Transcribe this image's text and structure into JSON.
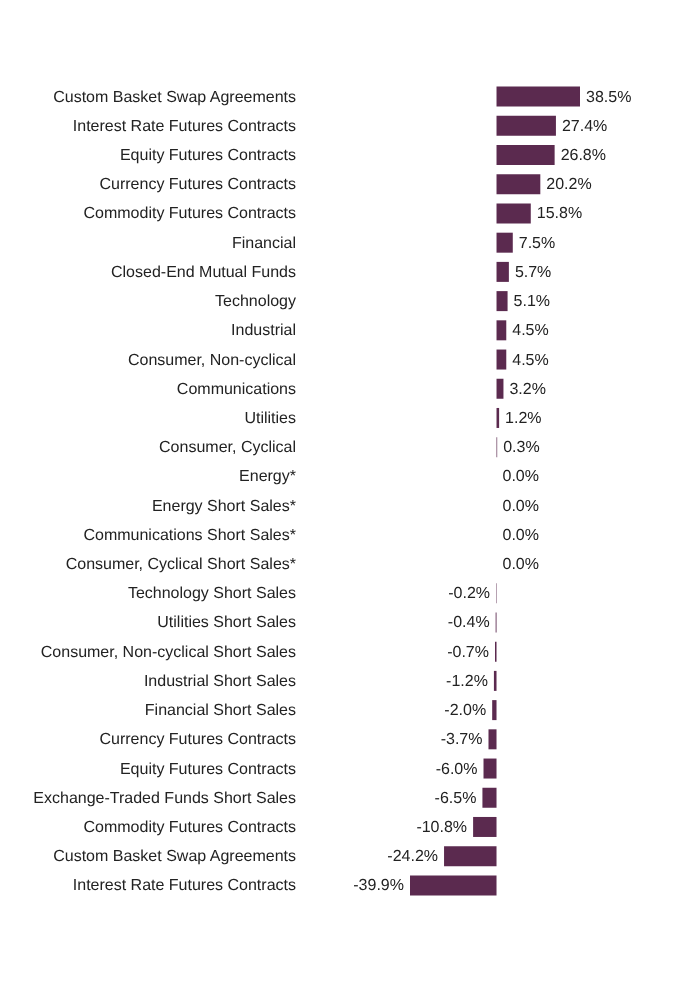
{
  "chart_data": {
    "type": "bar",
    "orientation": "horizontal",
    "color": "#5b2a4f",
    "categories": [
      "Custom Basket Swap Agreements",
      "Interest Rate Futures Contracts",
      "Equity Futures Contracts",
      "Currency Futures Contracts",
      "Commodity Futures Contracts",
      "Financial",
      "Closed-End Mutual Funds",
      "Technology",
      "Industrial",
      "Consumer, Non-cyclical",
      "Communications",
      "Utilities",
      "Consumer, Cyclical",
      "Energy*",
      "Energy Short Sales*",
      "Communications Short Sales*",
      "Consumer, Cyclical Short Sales*",
      "Technology Short Sales",
      "Utilities Short Sales",
      "Consumer, Non-cyclical Short Sales",
      "Industrial Short Sales",
      "Financial Short Sales",
      "Currency Futures Contracts",
      "Equity Futures Contracts",
      "Exchange-Traded Funds Short Sales",
      "Commodity Futures Contracts",
      "Custom Basket Swap Agreements",
      "Interest Rate Futures Contracts"
    ],
    "values": [
      38.5,
      27.4,
      26.8,
      20.2,
      15.8,
      7.5,
      5.7,
      5.1,
      4.5,
      4.5,
      3.2,
      1.2,
      0.3,
      0.0,
      0.0,
      0.0,
      0.0,
      -0.2,
      -0.4,
      -0.7,
      -1.2,
      -2.0,
      -3.7,
      -6.0,
      -6.5,
      -10.8,
      -24.2,
      -39.9
    ],
    "value_labels": [
      "38.5%",
      "27.4%",
      "26.8%",
      "20.2%",
      "15.8%",
      "7.5%",
      "5.7%",
      "5.1%",
      "4.5%",
      "4.5%",
      "3.2%",
      "1.2%",
      "0.3%",
      "0.0%",
      "0.0%",
      "0.0%",
      "0.0%",
      "-0.2%",
      "-0.4%",
      "-0.7%",
      "-1.2%",
      "-2.0%",
      "-3.7%",
      "-6.0%",
      "-6.5%",
      "-10.8%",
      "-24.2%",
      "-39.9%"
    ]
  }
}
